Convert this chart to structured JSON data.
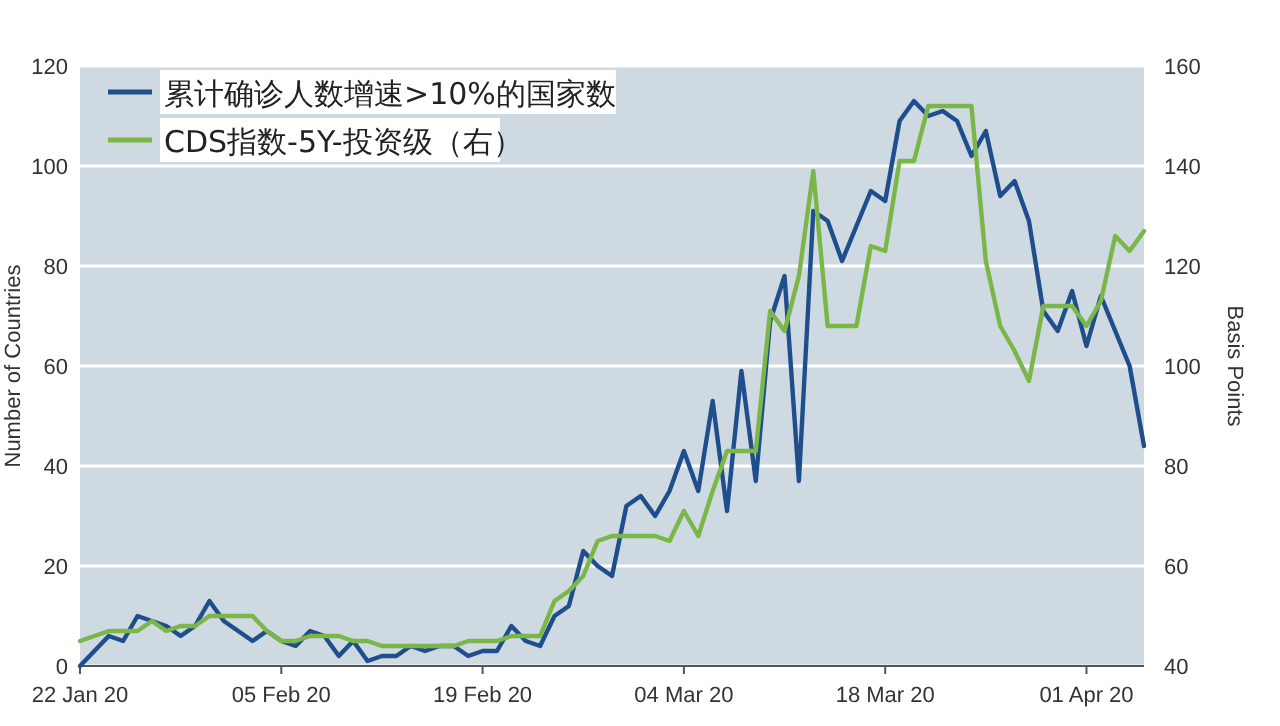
{
  "chart_data": {
    "type": "line",
    "ylabel": "Number of Countries",
    "y2label": "Basis Points",
    "x": [
      "2020-01-22",
      "2020-01-23",
      "2020-01-24",
      "2020-01-25",
      "2020-01-26",
      "2020-01-27",
      "2020-01-28",
      "2020-01-29",
      "2020-01-30",
      "2020-01-31",
      "2020-02-01",
      "2020-02-02",
      "2020-02-03",
      "2020-02-04",
      "2020-02-05",
      "2020-02-06",
      "2020-02-07",
      "2020-02-08",
      "2020-02-09",
      "2020-02-10",
      "2020-02-11",
      "2020-02-12",
      "2020-02-13",
      "2020-02-14",
      "2020-02-15",
      "2020-02-16",
      "2020-02-17",
      "2020-02-18",
      "2020-02-19",
      "2020-02-20",
      "2020-02-21",
      "2020-02-22",
      "2020-02-23",
      "2020-02-24",
      "2020-02-25",
      "2020-02-26",
      "2020-02-27",
      "2020-02-28",
      "2020-02-29",
      "2020-03-01",
      "2020-03-02",
      "2020-03-03",
      "2020-03-04",
      "2020-03-05",
      "2020-03-06",
      "2020-03-07",
      "2020-03-08",
      "2020-03-09",
      "2020-03-10",
      "2020-03-11",
      "2020-03-12",
      "2020-03-13",
      "2020-03-14",
      "2020-03-15",
      "2020-03-16",
      "2020-03-17",
      "2020-03-18",
      "2020-03-19",
      "2020-03-20",
      "2020-03-21",
      "2020-03-22",
      "2020-03-23",
      "2020-03-24",
      "2020-03-25",
      "2020-03-26",
      "2020-03-27",
      "2020-03-28",
      "2020-03-29",
      "2020-03-30",
      "2020-03-31",
      "2020-04-01",
      "2020-04-02",
      "2020-04-03",
      "2020-04-04",
      "2020-04-05"
    ],
    "series": [
      {
        "name": "累计确诊人数增速>10%的国家数",
        "color": "#1f4e8c",
        "values": [
          0,
          3,
          6,
          5,
          10,
          9,
          8,
          6,
          8,
          13,
          9,
          7,
          5,
          7,
          5,
          4,
          7,
          6,
          2,
          5,
          1,
          2,
          2,
          4,
          3,
          4,
          4,
          2,
          3,
          3,
          8,
          5,
          4,
          10,
          12,
          23,
          20,
          18,
          32,
          34,
          30,
          35,
          43,
          35,
          53,
          31,
          59,
          37,
          69,
          78,
          37,
          91,
          89,
          81,
          88,
          95,
          93,
          109,
          113,
          110,
          111,
          109,
          102,
          107,
          94,
          97,
          89,
          71,
          67,
          75,
          64,
          74,
          67,
          60,
          44
        ]
      },
      {
        "name": " CDS指数-5Y-投资级（右）",
        "color": "#7ab648",
        "axis": "y2",
        "values": [
          45,
          46,
          47,
          47,
          47,
          49,
          47,
          48,
          48,
          50,
          50,
          50,
          50,
          47,
          45,
          45,
          46,
          46,
          46,
          45,
          45,
          44,
          44,
          44,
          44,
          44,
          44,
          45,
          45,
          45,
          46,
          46,
          46,
          53,
          55,
          58,
          65,
          66,
          66,
          66,
          66,
          65,
          71,
          66,
          75,
          83,
          83,
          83,
          111,
          107,
          118,
          139,
          108,
          108,
          108,
          124,
          123,
          141,
          141,
          152,
          152,
          152,
          152,
          121,
          108,
          103,
          97,
          112,
          112,
          112,
          108,
          113,
          126,
          123,
          127
        ]
      }
    ],
    "xlim": [
      "2020-01-22",
      "2020-04-05"
    ],
    "xticks": [
      {
        "value": "2020-01-22",
        "label": "22 Jan 20"
      },
      {
        "value": "2020-02-05",
        "label": "05 Feb 20"
      },
      {
        "value": "2020-02-19",
        "label": "19 Feb 20"
      },
      {
        "value": "2020-03-04",
        "label": "04 Mar 20"
      },
      {
        "value": "2020-03-18",
        "label": "18 Mar 20"
      },
      {
        "value": "2020-04-01",
        "label": "01 Apr 20"
      }
    ],
    "ylim": [
      0,
      120
    ],
    "yticks": [
      0,
      20,
      40,
      60,
      80,
      100,
      120
    ],
    "y2lim": [
      40,
      160
    ],
    "y2ticks": [
      40,
      60,
      80,
      100,
      120,
      140,
      160
    ],
    "grid": "y",
    "legend": "top left",
    "line_style": "solid",
    "marker": "none"
  }
}
